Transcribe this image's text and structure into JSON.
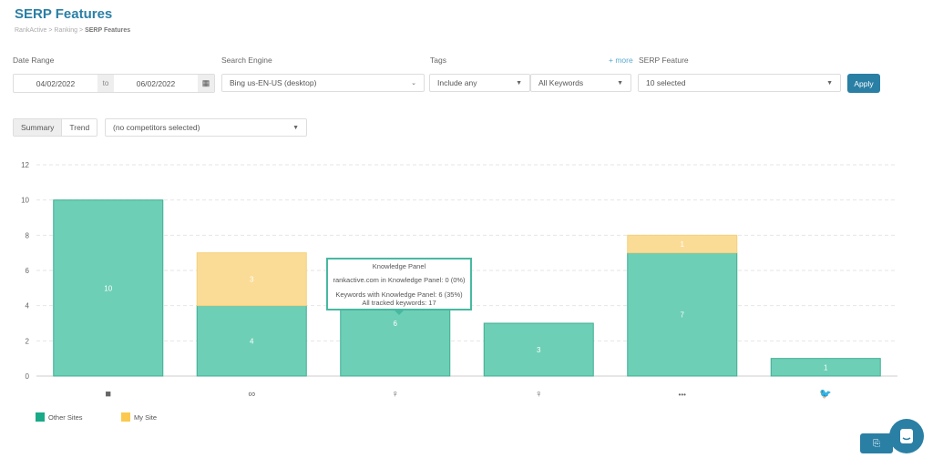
{
  "header": {
    "title": "SERP Features",
    "breadcrumb": [
      "RankActive",
      "Ranking",
      "SERP Features"
    ]
  },
  "filters": {
    "date_range_label": "Date Range",
    "date_from": "04/02/2022",
    "to_label": "to",
    "date_to": "06/02/2022",
    "search_engine_label": "Search Engine",
    "search_engine": "Bing us-EN-US (desktop)",
    "tags_label": "Tags",
    "more_link": "+ more",
    "tags_mode": "Include any",
    "tags_value": "All Keywords",
    "serp_feature_label": "SERP Feature",
    "serp_feature_value": "10 selected",
    "apply_label": "Apply"
  },
  "view": {
    "summary_label": "Summary",
    "trend_label": "Trend",
    "competitors": "(no competitors selected)"
  },
  "colors": {
    "other": "#6dcfb6",
    "my": "#fbdc96",
    "accent": "#2a7fa5"
  },
  "chart_data": {
    "type": "bar",
    "stacked": true,
    "categories": [
      "video-icon",
      "link-icon",
      "knowledge-panel-icon",
      "featured-snippet-icon",
      "more-icon",
      "twitter-icon"
    ],
    "series": [
      {
        "name": "Other Sites",
        "values": [
          10,
          4,
          6,
          3,
          7,
          1
        ]
      },
      {
        "name": "My Site",
        "values": [
          0,
          3,
          0,
          0,
          1,
          0
        ]
      }
    ],
    "ylim": [
      0,
      12
    ],
    "yticks": [
      "0",
      "2",
      "4",
      "6",
      "8",
      "10",
      "12"
    ],
    "grid": true,
    "legend": "bottom-left"
  },
  "tooltip": {
    "title": "Knowledge Panel",
    "line1": "rankactive.com in Knowledge Panel: 0 (0%)",
    "line2": "Keywords with Knowledge Panel: 6 (35%)",
    "line3": "All tracked keywords: 17"
  },
  "legend": {
    "other": "Other Sites",
    "my": "My Site"
  }
}
